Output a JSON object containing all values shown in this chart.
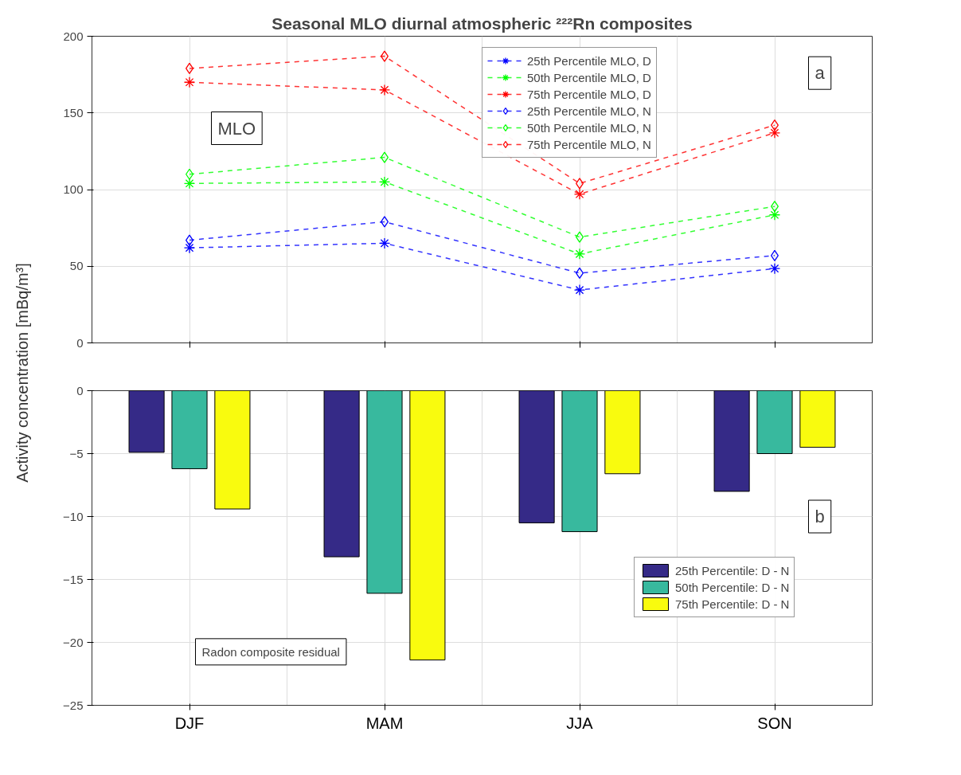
{
  "chart_data": [
    {
      "type": "line",
      "title": "Seasonal MLO diurnal atmospheric ²²²Rn composites",
      "ylabel": "Activity concentration [mBq/m³]",
      "categories": [
        null,
        null,
        null,
        null
      ],
      "ylim": [
        0,
        200
      ],
      "yticks": [
        0,
        50,
        100,
        150,
        200
      ],
      "tick_labels": "y",
      "grid": true,
      "legend": "top right",
      "line_style": "dashed",
      "annotations": [
        "MLO",
        "a"
      ],
      "series": [
        {
          "name": "25th Percentile MLO, D",
          "color": "#0000ff",
          "marker": "cross",
          "values": [
            62,
            65,
            34.5,
            48.5
          ]
        },
        {
          "name": "50th Percentile MLO, D",
          "color": "#00ff00",
          "marker": "cross",
          "values": [
            104,
            105,
            58,
            83.5
          ]
        },
        {
          "name": "75th Percentile MLO, D",
          "color": "#ff0000",
          "marker": "cross",
          "values": [
            170,
            165,
            97,
            137
          ]
        },
        {
          "name": "25th Percentile MLO, N",
          "color": "#0000ff",
          "marker": "diamond",
          "values": [
            67,
            79,
            45.5,
            57
          ]
        },
        {
          "name": "50th Percentile MLO, N",
          "color": "#00ff00",
          "marker": "diamond",
          "values": [
            110,
            121,
            69,
            89
          ]
        },
        {
          "name": "75th Percentile MLO, N",
          "color": "#ff0000",
          "marker": "diamond",
          "values": [
            179,
            187,
            104,
            142
          ]
        }
      ]
    },
    {
      "type": "bar",
      "categories": [
        "DJF",
        "MAM",
        "JJA",
        "SON"
      ],
      "ylim": [
        -25,
        0
      ],
      "yticks": [
        -25,
        -20,
        -15,
        -10,
        -5,
        0
      ],
      "grid": true,
      "legend": "bottom right",
      "annotations": [
        "Radon composite residual",
        "b"
      ],
      "series": [
        {
          "name": "25th Percentile: D - N",
          "color": "#352a87",
          "values": [
            -4.9,
            -13.2,
            -10.5,
            -8.0
          ]
        },
        {
          "name": "50th Percentile: D - N",
          "color": "#38b99e",
          "values": [
            -6.2,
            -16.1,
            -11.2,
            -5.0
          ]
        },
        {
          "name": "75th Percentile: D - N",
          "color": "#f9fb0e",
          "values": [
            -9.4,
            -21.4,
            -6.6,
            -4.5
          ]
        }
      ]
    }
  ]
}
